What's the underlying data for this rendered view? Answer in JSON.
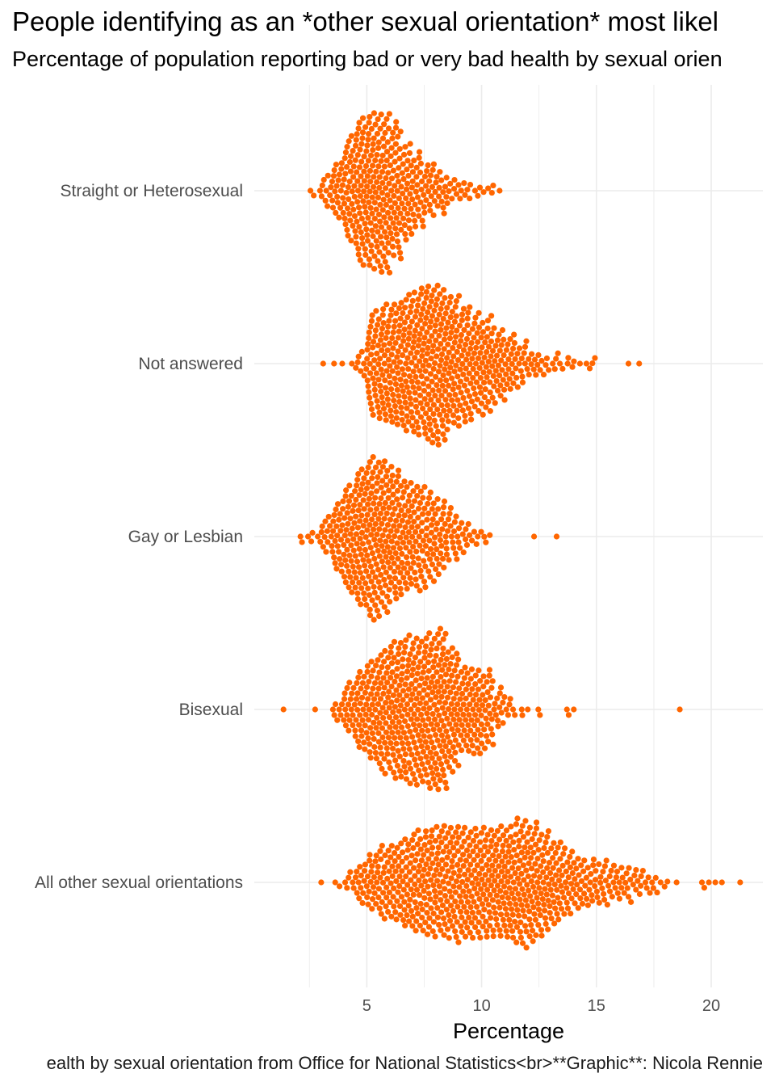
{
  "title": "People identifying as an *other sexual orientation* most likel",
  "subtitle": "Percentage of population reporting bad or very bad health by sexual orien",
  "caption": "ealth by sexual orientation from Office for National Statistics<br>**Graphic**: Nicola Rennie",
  "colors": {
    "point": "#FF6600",
    "grid": "#EBEBEB"
  },
  "chart_data": {
    "type": "scatter",
    "subtype": "beeswarm",
    "xlabel": "Percentage",
    "ylabel": "",
    "xlim": [
      0.1,
      22.25
    ],
    "xticks": [
      5,
      10,
      15,
      20
    ],
    "xtick_labels": [
      "5",
      "10",
      "15",
      "20"
    ],
    "grid": true,
    "bin_width": 0.5,
    "note": "point counts per 0.5-wide percentage bin, keyed by bin start",
    "categories": [
      {
        "name": "Straight or Heterosexual",
        "bins": {
          "2.5": 3,
          "3": 10,
          "3.5": 20,
          "4": 35,
          "4.5": 50,
          "5": 53,
          "5.5": 53,
          "6": 45,
          "6.5": 32,
          "7": 24,
          "7.5": 18,
          "8": 14,
          "8.5": 8,
          "9": 6,
          "9.5": 4,
          "10": 3,
          "10.5": 2
        }
      },
      {
        "name": "Not answered",
        "bins": {
          "3": 1,
          "3.5": 2,
          "4": 1,
          "4.5": 8,
          "5": 35,
          "5.5": 40,
          "6": 43,
          "6.5": 47,
          "7": 50,
          "7.5": 55,
          "8": 54,
          "8.5": 45,
          "9": 40,
          "9.5": 35,
          "10": 32,
          "10.5": 25,
          "11": 20,
          "11.5": 14,
          "12": 9,
          "12.5": 6,
          "13": 5,
          "13.5": 4,
          "14": 2,
          "14.5": 4,
          "16": 1,
          "16.5": 1
        }
      },
      {
        "name": "Gay or Lesbian",
        "bins": {
          "2": 3,
          "2.5": 4,
          "3": 12,
          "3.5": 25,
          "4": 38,
          "4.5": 48,
          "5": 55,
          "5.5": 52,
          "6": 45,
          "6.5": 38,
          "7": 34,
          "7.5": 30,
          "8": 24,
          "8.5": 16,
          "9": 10,
          "9.5": 5,
          "10": 3,
          "12": 1,
          "13": 1
        }
      },
      {
        "name": "Bisexual",
        "bins": {
          "1": 1,
          "2.5": 1,
          "3.5": 8,
          "4": 18,
          "4.5": 28,
          "5": 35,
          "5.5": 42,
          "6": 47,
          "6.5": 49,
          "7": 50,
          "7.5": 53,
          "8": 55,
          "8.5": 42,
          "9": 30,
          "9.5": 30,
          "10": 25,
          "10.5": 14,
          "11": 6,
          "11.5": 2,
          "12": 2,
          "12.5": 1,
          "13.5": 2,
          "14": 1,
          "18.5": 1
        }
      },
      {
        "name": "All other sexual orientations",
        "bins": {
          "3": 1,
          "3.5": 2,
          "4": 6,
          "4.5": 14,
          "5": 20,
          "5.5": 24,
          "6": 26,
          "6.5": 30,
          "7": 34,
          "7.5": 36,
          "8": 37,
          "8.5": 38,
          "9": 38,
          "9.5": 37,
          "10": 37,
          "10.5": 38,
          "11": 40,
          "11.5": 42,
          "12": 40,
          "12.5": 34,
          "13": 28,
          "13.5": 22,
          "14": 17,
          "14.5": 15,
          "15": 14,
          "15.5": 12,
          "16": 11,
          "16.5": 9,
          "17": 7,
          "17.5": 4,
          "18": 2,
          "19.5": 3,
          "20": 2,
          "21": 1
        }
      }
    ]
  }
}
